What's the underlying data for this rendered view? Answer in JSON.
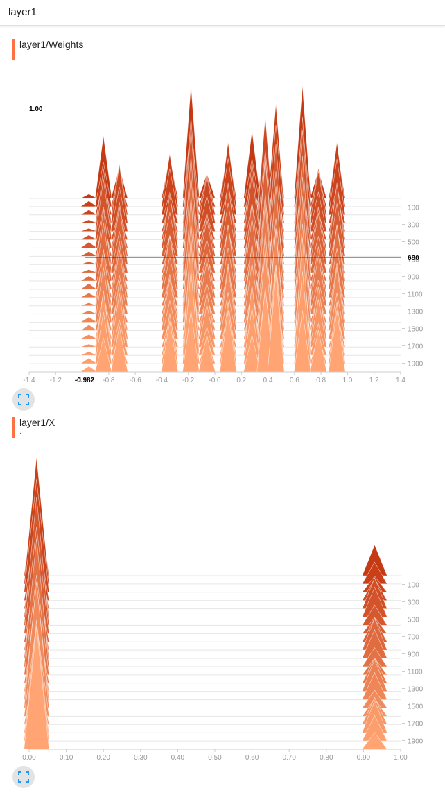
{
  "header": {
    "title": "layer1"
  },
  "charts": [
    {
      "title": "layer1/Weights",
      "subtitle": ".",
      "hover": {
        "x_label": "-0.982",
        "step_label": "680",
        "value_label": "1.00"
      },
      "chart_data": {
        "type": "histogram-offset",
        "x_range": [
          -1.4,
          1.4
        ],
        "x_ticks": [
          "-1.4",
          "-1.2",
          "-1.0",
          "-0.8",
          "-0.6",
          "-0.4",
          "-0.2",
          "-0.0",
          "0.2",
          "0.4",
          "0.6",
          "0.8",
          "1.0",
          "1.2",
          "1.4"
        ],
        "step_ticks": [
          "100",
          "300",
          "500",
          "700",
          "900",
          "1100",
          "1300",
          "1500",
          "1700",
          "1900"
        ],
        "steps": [
          0,
          2000
        ],
        "peaks": [
          {
            "x": -0.95,
            "h": 0.05
          },
          {
            "x": -0.84,
            "h": 0.55
          },
          {
            "x": -0.72,
            "h": 0.5
          },
          {
            "x": -0.34,
            "h": 0.45
          },
          {
            "x": -0.18,
            "h": 1.0
          },
          {
            "x": -0.06,
            "h": 0.4
          },
          {
            "x": 0.1,
            "h": 0.55
          },
          {
            "x": 0.28,
            "h": 0.6
          },
          {
            "x": 0.38,
            "h": 0.92
          },
          {
            "x": 0.46,
            "h": 0.88
          },
          {
            "x": 0.66,
            "h": 1.0
          },
          {
            "x": 0.78,
            "h": 0.45
          },
          {
            "x": 0.92,
            "h": 0.55
          }
        ]
      }
    },
    {
      "title": "layer1/X",
      "subtitle": ".",
      "chart_data": {
        "type": "histogram-offset",
        "x_range": [
          0,
          1
        ],
        "x_ticks": [
          "0.00",
          "0.10",
          "0.20",
          "0.30",
          "0.40",
          "0.50",
          "0.60",
          "0.70",
          "0.80",
          "0.90",
          "1.00"
        ],
        "step_ticks": [
          "100",
          "300",
          "500",
          "700",
          "900",
          "1100",
          "1300",
          "1500",
          "1700",
          "1900"
        ],
        "steps": [
          0,
          2000
        ],
        "peaks": [
          {
            "x": 0.02,
            "h": 1.0
          },
          {
            "x": 0.93,
            "h": 0.25
          }
        ]
      }
    }
  ],
  "colors": {
    "front": "#ffa472",
    "back": "#c53a13",
    "accent": "#ff7043"
  }
}
